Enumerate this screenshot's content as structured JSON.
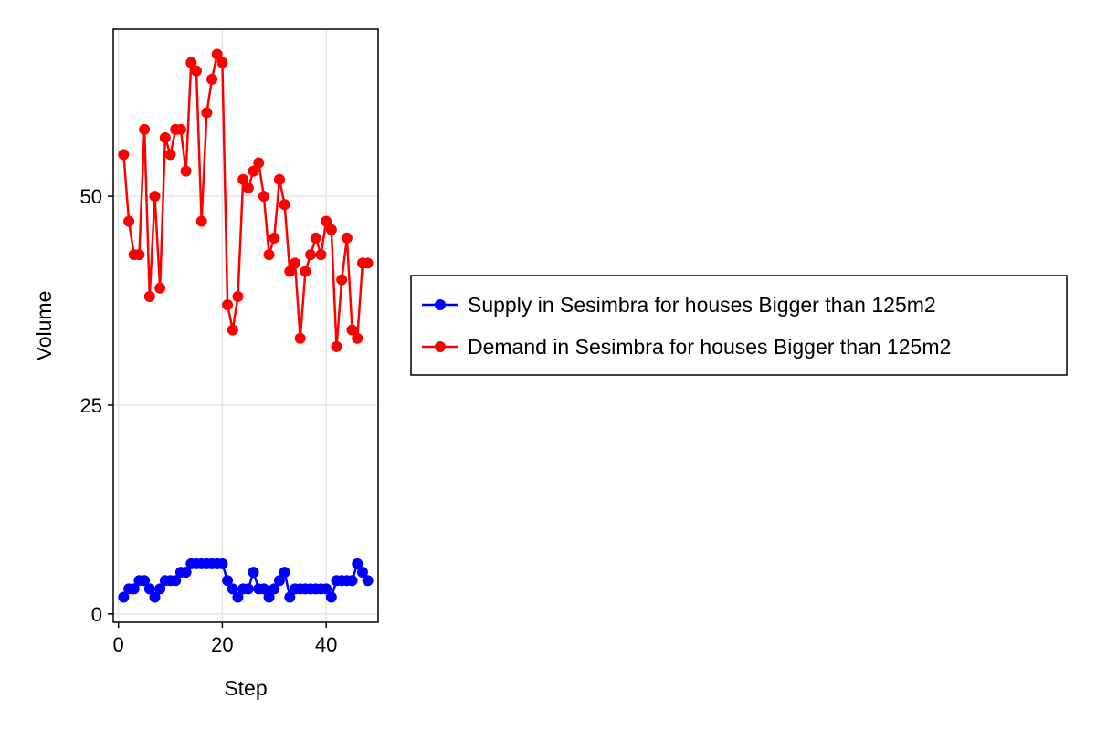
{
  "chart_data": {
    "type": "line",
    "title": "",
    "xlabel": "Step",
    "ylabel": "Volume",
    "xlim": [
      -1,
      50
    ],
    "ylim": [
      -1,
      70
    ],
    "xticks": [
      0,
      20,
      40
    ],
    "yticks": [
      0,
      25,
      50
    ],
    "grid": true,
    "legend_position": "right",
    "x": [
      1,
      2,
      3,
      4,
      5,
      6,
      7,
      8,
      9,
      10,
      11,
      12,
      13,
      14,
      15,
      16,
      17,
      18,
      19,
      20,
      21,
      22,
      23,
      24,
      25,
      26,
      27,
      28,
      29,
      30,
      31,
      32,
      33,
      34,
      35,
      36,
      37,
      38,
      39,
      40,
      41,
      42,
      43,
      44,
      45,
      46,
      47,
      48
    ],
    "series": [
      {
        "name": "Supply in Sesimbra for houses Bigger than 125m2",
        "color": "#0000ff",
        "values": [
          2,
          3,
          3,
          4,
          4,
          3,
          2,
          3,
          4,
          4,
          4,
          5,
          5,
          6,
          6,
          6,
          6,
          6,
          6,
          6,
          4,
          3,
          2,
          3,
          3,
          5,
          3,
          3,
          2,
          3,
          4,
          5,
          2,
          3,
          3,
          3,
          3,
          3,
          3,
          3,
          2,
          4,
          4,
          4,
          4,
          6,
          5,
          4
        ]
      },
      {
        "name": "Demand in Sesimbra for houses Bigger than 125m2",
        "color": "#ff0000",
        "values": [
          55,
          47,
          43,
          43,
          58,
          38,
          50,
          39,
          57,
          55,
          58,
          58,
          53,
          66,
          65,
          47,
          60,
          64,
          67,
          66,
          37,
          34,
          38,
          52,
          51,
          53,
          54,
          50,
          43,
          45,
          52,
          49,
          41,
          42,
          33,
          41,
          43,
          45,
          43,
          47,
          46,
          32,
          40,
          45,
          34,
          33,
          42,
          42
        ]
      }
    ]
  }
}
